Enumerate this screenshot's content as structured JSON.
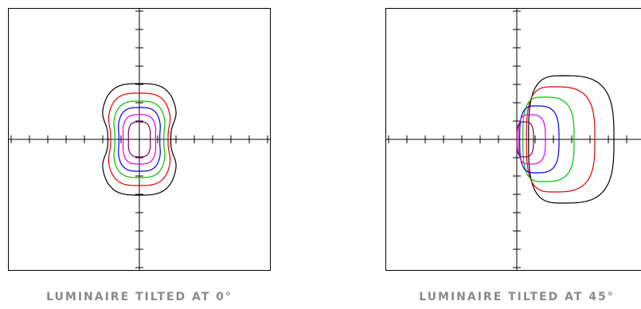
{
  "plots": [
    {
      "caption": "LUMINAIRE TILTED AT 0°",
      "tilt_deg": 0,
      "contours": [
        {
          "color": "#000000",
          "hw": 48,
          "top": 70,
          "bottom": 70,
          "pinch": 0.18,
          "skew": 0
        },
        {
          "color": "#e00000",
          "hw": 40,
          "top": 58,
          "bottom": 58,
          "pinch": 0.1,
          "skew": 0
        },
        {
          "color": "#00c000",
          "hw": 33,
          "top": 48,
          "bottom": 48,
          "pinch": 0.07,
          "skew": 0
        },
        {
          "color": "#0000e0",
          "hw": 27,
          "top": 40,
          "bottom": 40,
          "pinch": 0.05,
          "skew": 0
        },
        {
          "color": "#e000e0",
          "hw": 21,
          "top": 31,
          "bottom": 31,
          "pinch": 0.03,
          "skew": 0
        },
        {
          "color": "#800060",
          "hw": 14,
          "top": 22,
          "bottom": 22,
          "pinch": 0.02,
          "skew": 0
        }
      ]
    },
    {
      "caption": "LUMINAIRE TILTED AT 45°",
      "tilt_deg": 45,
      "contours": [
        {
          "color": "#000000",
          "cx": 57,
          "hw": 65,
          "top": 80,
          "bottom": 80,
          "pinch": 0,
          "skew": 0.35
        },
        {
          "color": "#e00000",
          "cx": 46,
          "hw": 52,
          "top": 66,
          "bottom": 66,
          "pinch": 0,
          "skew": 0.35
        },
        {
          "color": "#00c000",
          "cx": 33,
          "hw": 39,
          "top": 53,
          "bottom": 53,
          "pinch": 0,
          "skew": 0.35
        },
        {
          "color": "#0000e0",
          "cx": 24,
          "hw": 29,
          "top": 42,
          "bottom": 42,
          "pinch": 0,
          "skew": 0.3
        },
        {
          "color": "#e000e0",
          "cx": 16,
          "hw": 20,
          "top": 31,
          "bottom": 31,
          "pinch": 0,
          "skew": 0.3
        },
        {
          "color": "#800060",
          "cx": 9,
          "hw": 12,
          "top": 22,
          "bottom": 22,
          "pinch": 0,
          "skew": 0.25
        }
      ]
    }
  ]
}
